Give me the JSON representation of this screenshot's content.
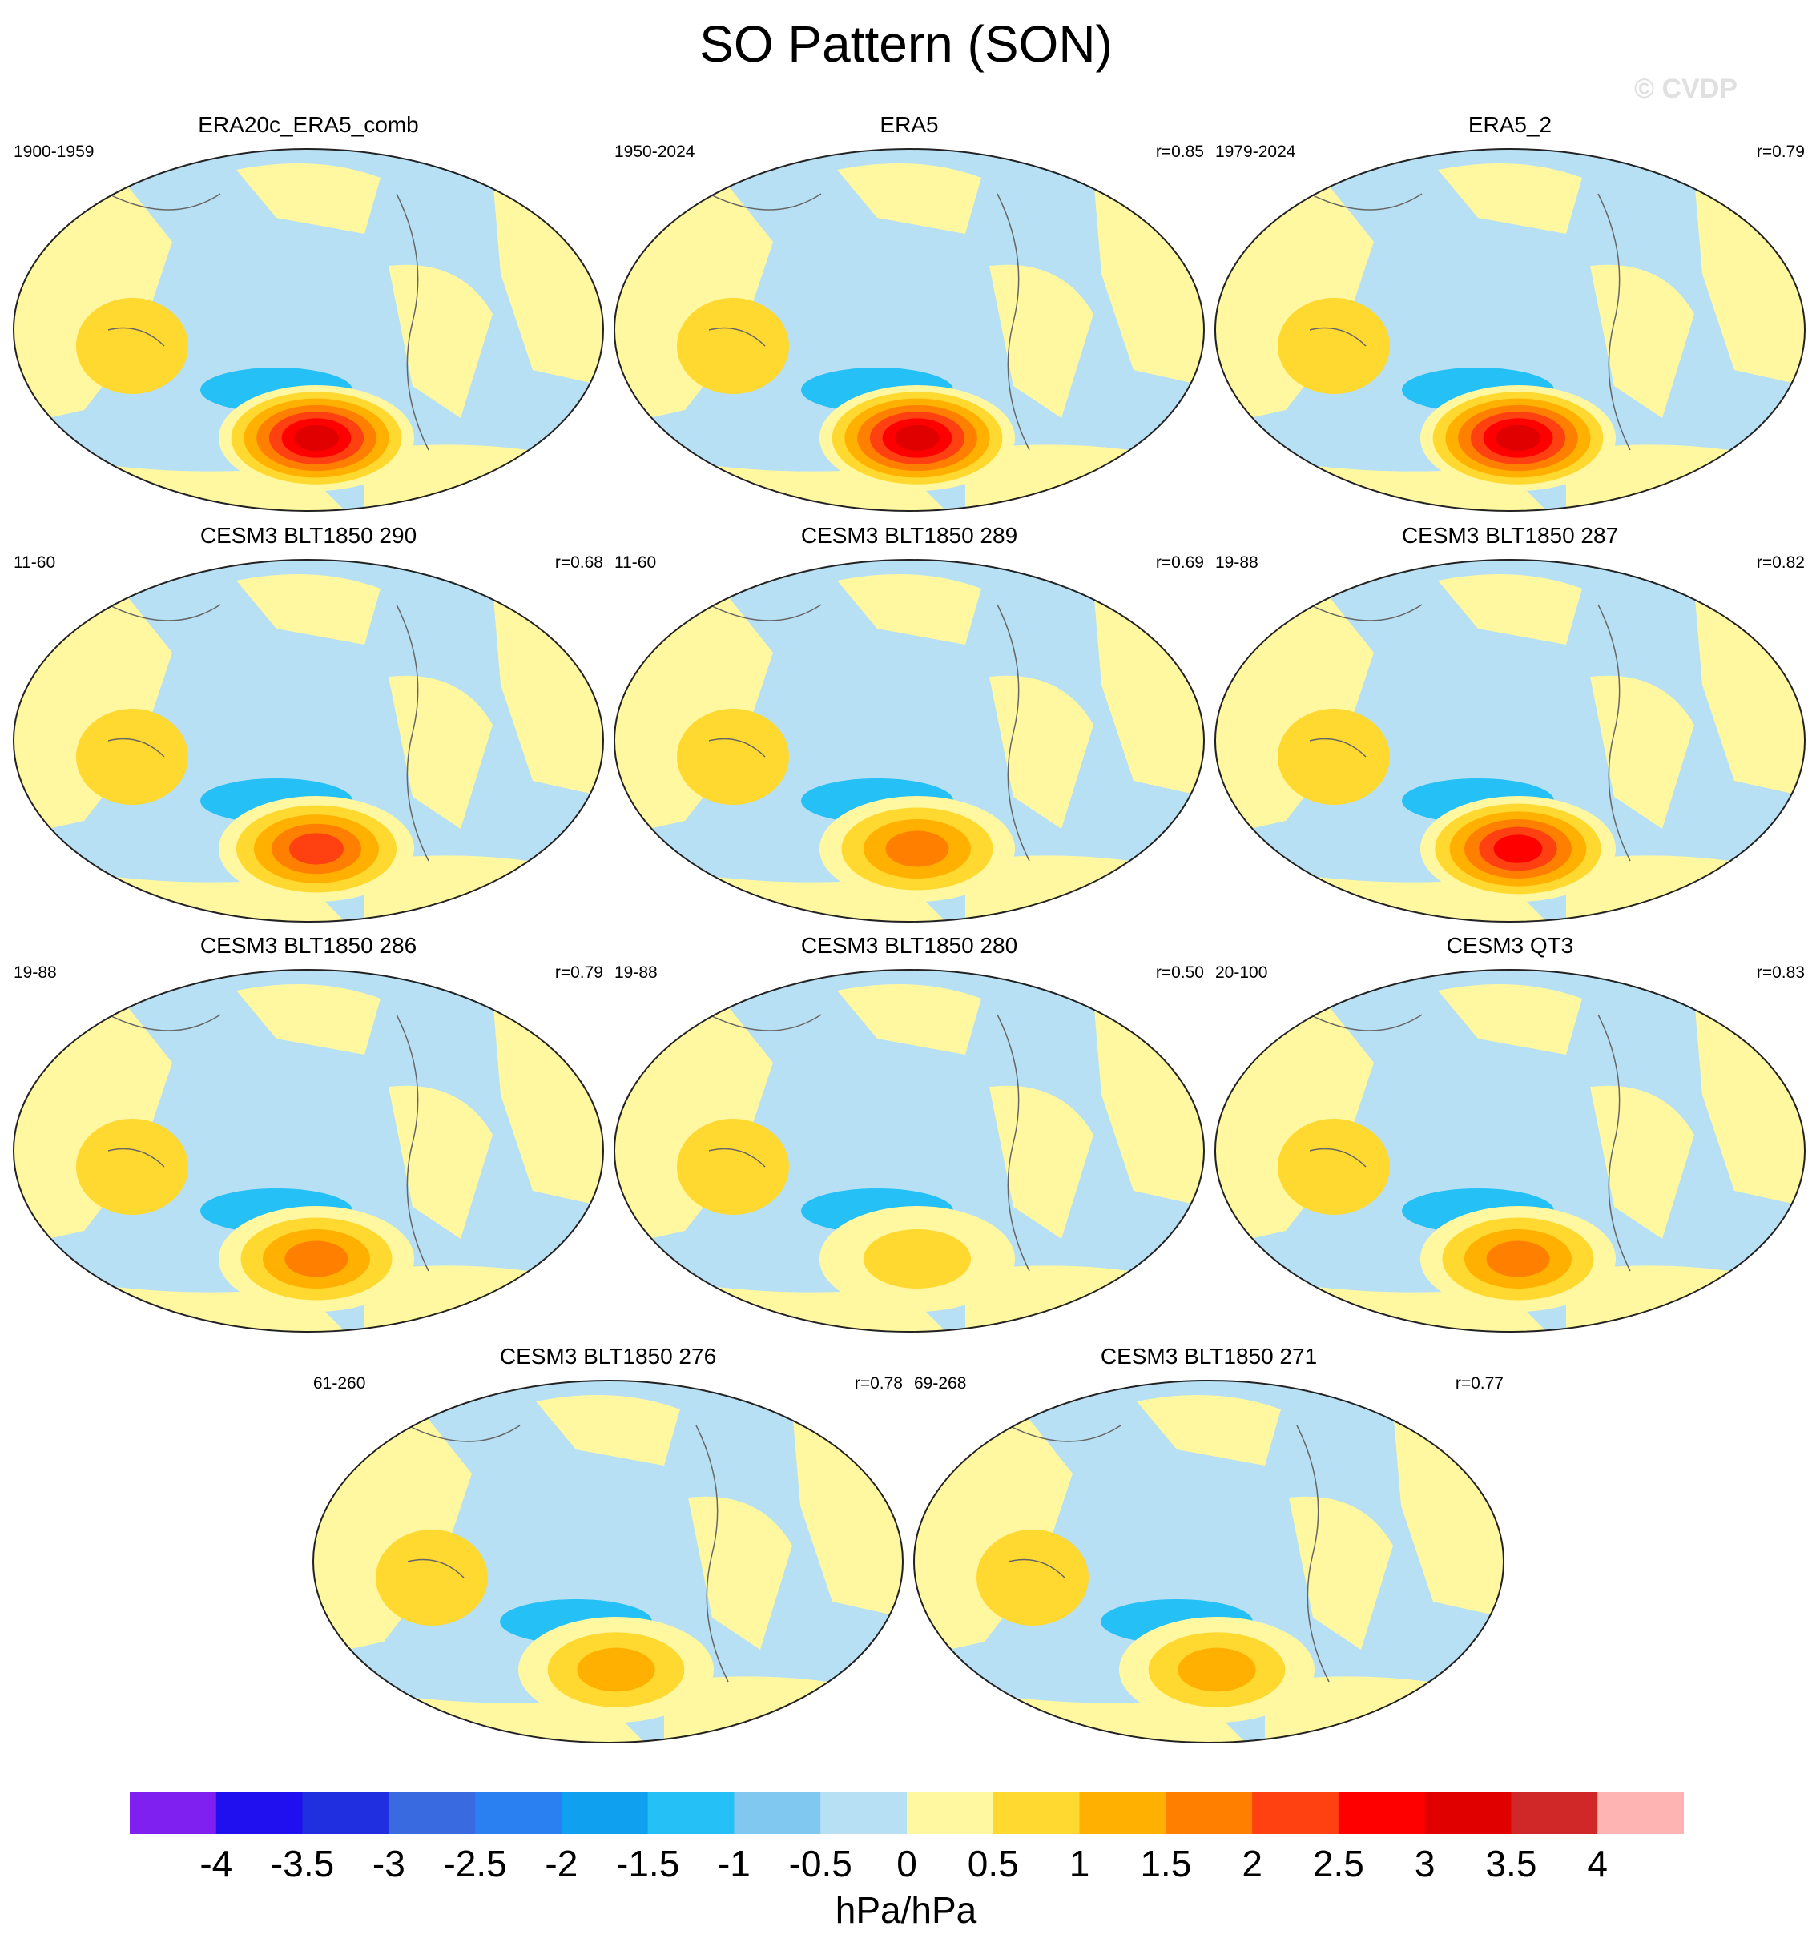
{
  "header": {
    "title": "SO Pattern (SON)",
    "copyright": "© CVDP"
  },
  "chart_data": {
    "type": "heatmap",
    "variable": "SO Pattern (SON)",
    "units": "hPa/hPa",
    "colorbar": {
      "levels": [
        "-4",
        "-3.5",
        "-3",
        "-2.5",
        "-2",
        "-1.5",
        "-1",
        "-0.5",
        "0",
        "0.5",
        "1",
        "1.5",
        "2",
        "2.5",
        "3",
        "3.5",
        "4"
      ],
      "colors": [
        "#8020f0",
        "#2010f0",
        "#2030e0",
        "#3a6ae0",
        "#2a80f0",
        "#10a0f0",
        "#25c0f5",
        "#80c8f0",
        "#b8e0f4",
        "#fff8a0",
        "#ffd830",
        "#ffb000",
        "#ff8000",
        "#ff4010",
        "#ff0000",
        "#e00000",
        "#d02828",
        "#ffb4b4"
      ]
    },
    "panels": [
      {
        "title": "ERA20c_ERA5_comb",
        "period": "1900-1959",
        "r": "",
        "max_positive": 3.5
      },
      {
        "title": "ERA5",
        "period": "1950-2024",
        "r": "r=0.85",
        "max_positive": 3.5
      },
      {
        "title": "ERA5_2",
        "period": "1979-2024",
        "r": "r=0.79",
        "max_positive": 3.5
      },
      {
        "title": "CESM3 BLT1850 290",
        "period": "11-60",
        "r": "r=0.68",
        "max_positive": 2.5
      },
      {
        "title": "CESM3 BLT1850 289",
        "period": "11-60",
        "r": "r=0.69",
        "max_positive": 2
      },
      {
        "title": "CESM3 BLT1850 287",
        "period": "19-88",
        "r": "r=0.82",
        "max_positive": 3
      },
      {
        "title": "CESM3 BLT1850 286",
        "period": "19-88",
        "r": "r=0.79",
        "max_positive": 2
      },
      {
        "title": "CESM3 BLT1850 280",
        "period": "19-88",
        "r": "r=0.50",
        "max_positive": 1
      },
      {
        "title": "CESM3 QT3",
        "period": "20-100",
        "r": "r=0.83",
        "max_positive": 2
      },
      {
        "title": "CESM3 BLT1850 276",
        "period": "61-260",
        "r": "r=0.78",
        "max_positive": 1.5
      },
      {
        "title": "CESM3 BLT1850 271",
        "period": "69-268",
        "r": "r=0.77",
        "max_positive": 1.5
      }
    ]
  }
}
